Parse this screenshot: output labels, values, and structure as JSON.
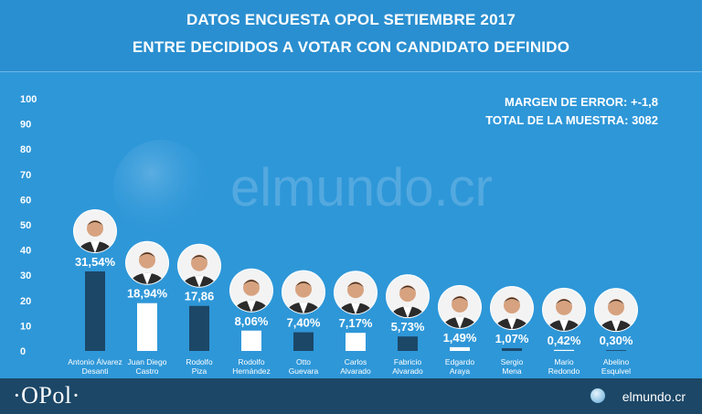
{
  "header": {
    "title_line1": "DATOS ENCUESTA OPOL SETIEMBRE 2017",
    "title_line2": "ENTRE DECIDIDOS A VOTAR CON CANDIDATO DEFINIDO"
  },
  "stats": {
    "margin_error": "MARGEN DE ERROR: +-1,8",
    "sample_total": "TOTAL DE LA MUESTRA: 3082"
  },
  "watermark": "elmundo.cr",
  "footer": {
    "left_brand": "·OPol·",
    "right_brand": "elmundo.cr",
    "right_brand_icon": "globe-icon"
  },
  "colors": {
    "background": "#2e97d8",
    "footer": "#1c4767",
    "bar_dark": "#1c4767",
    "bar_light": "#ffffff"
  },
  "chart_data": {
    "type": "bar",
    "ylim": [
      0,
      100
    ],
    "yticks": [
      0,
      10,
      20,
      30,
      40,
      50,
      60,
      70,
      80,
      90,
      100
    ],
    "grid": false,
    "categories": [
      [
        "Antonio Álvarez",
        "Desanti"
      ],
      [
        "Juan Diego",
        "Castro"
      ],
      [
        "Rodolfo",
        "Piza"
      ],
      [
        "Rodolfo",
        "Hernández"
      ],
      [
        "Otto",
        "Guevara"
      ],
      [
        "Carlos",
        "Alvarado"
      ],
      [
        "Fabricio",
        "Alvarado"
      ],
      [
        "Edgardo",
        "Araya"
      ],
      [
        "Sergio",
        "Mena"
      ],
      [
        "Mario",
        "Redondo"
      ],
      [
        "Abelino",
        "Esquivel"
      ]
    ],
    "values": [
      31.54,
      18.94,
      17.86,
      8.06,
      7.4,
      7.17,
      5.73,
      1.49,
      1.07,
      0.42,
      0.3
    ],
    "value_labels": [
      "31,54%",
      "18,94%",
      "17,86",
      "8,06%",
      "7,40%",
      "7,17%",
      "5,73%",
      "1,49%",
      "1,07%",
      "0,42%",
      "0,30%"
    ],
    "bar_colors": [
      "#1c4767",
      "#ffffff",
      "#1c4767",
      "#ffffff",
      "#1c4767",
      "#ffffff",
      "#1c4767",
      "#ffffff",
      "#1c4767",
      "#ffffff",
      "#1c4767"
    ],
    "photo_icon": "candidate-photo-icon"
  }
}
